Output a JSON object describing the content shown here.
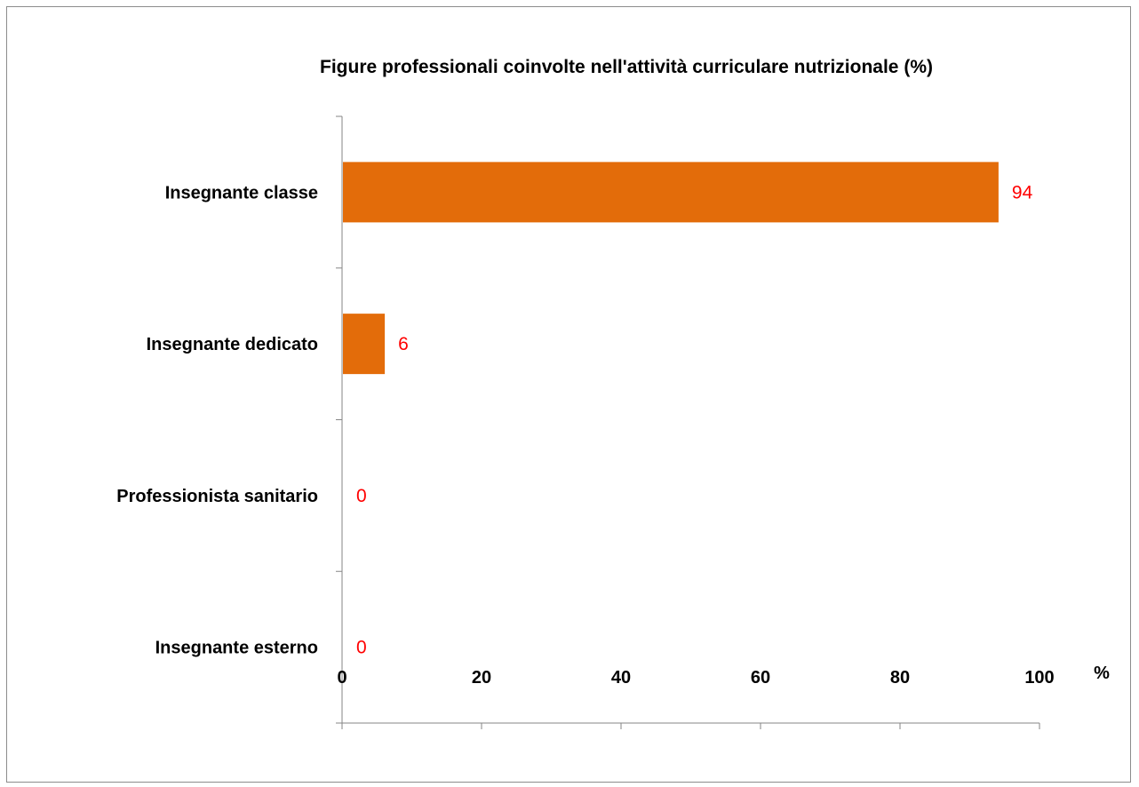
{
  "chart_data": {
    "type": "bar",
    "orientation": "horizontal",
    "title": "Figure professionali coinvolte nell'attività curriculare nutrizionale (%)",
    "xlabel": "%",
    "ylabel": "",
    "categories": [
      "Insegnante classe",
      "Insegnante dedicato",
      "Professionista sanitario",
      "Insegnante esterno"
    ],
    "values": [
      94,
      6,
      0,
      0
    ],
    "data_labels": [
      "94",
      "6",
      "0",
      "0"
    ],
    "xlim": [
      0,
      100
    ],
    "x_ticks": [
      "0",
      "20",
      "40",
      "60",
      "80",
      "100"
    ],
    "grid": false,
    "legend": "none",
    "bar_color": "#E36C0A",
    "label_color": "#FF0000",
    "axis_color": "#868686"
  }
}
